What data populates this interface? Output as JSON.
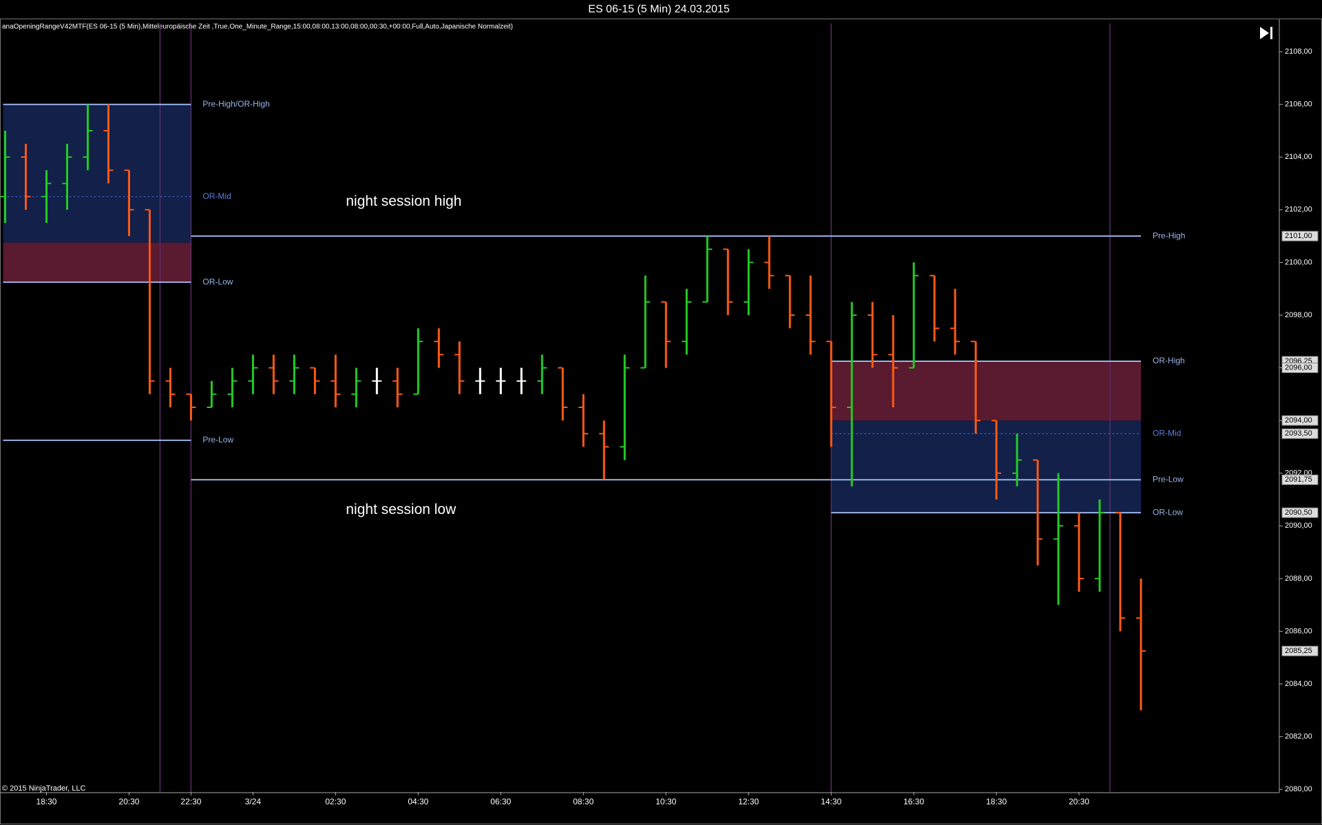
{
  "window_title": "ES 06-15 (5 Min)  24.03.2015",
  "indicator": "anaOpeningRangeV42MTF(ES 06-15 (5 Min),Mitteleuropäische Zeit ,True,One_Minute_Range,15:00,08:00,13:00,08:00,00:30,+00:00,Full,Auto,Japanische Normalzeit)",
  "copyright": "© 2015 NinjaTrader, LLC",
  "chart_data": {
    "type": "ohlc",
    "up_color": "#22cc22",
    "down_color": "#ff5a14",
    "flat_color": "#ffffff",
    "x": [
      -2,
      -1,
      0,
      1,
      2,
      3,
      4,
      5,
      6,
      7,
      8,
      9,
      10,
      11,
      12,
      13,
      14,
      15,
      16,
      17,
      18,
      19,
      20,
      21,
      22,
      23,
      24,
      25,
      26,
      27,
      28,
      29,
      30,
      31,
      32,
      33,
      34,
      35,
      36,
      37,
      38,
      39,
      40,
      41,
      42,
      43,
      44,
      45,
      46,
      47,
      48,
      49,
      50,
      51,
      52,
      53
    ],
    "open": [
      2102.5,
      2104,
      2102.5,
      2103,
      2104,
      2105,
      2103.5,
      2102,
      2095.5,
      2095,
      2094.5,
      2095,
      2095.5,
      2096,
      2095.5,
      2096,
      2095.5,
      2095,
      2095.5,
      2095.5,
      2095,
      2097,
      2096.5,
      2095.5,
      2095.5,
      2095.5,
      2095.5,
      2096,
      2094.5,
      2093.5,
      2093,
      2096,
      2098.5,
      2097,
      2098.5,
      2100.5,
      2098.5,
      2100,
      2099.5,
      2098,
      2097,
      2094.5,
      2098,
      2096.5,
      2096,
      2099.5,
      2097.5,
      2097,
      2094,
      2092,
      2092.5,
      2089.5,
      2090,
      2088,
      2090.5,
      2086.5
    ],
    "high": [
      2105,
      2104.5,
      2103.5,
      2104.5,
      2106,
      2106,
      2103.5,
      2102,
      2096,
      2095,
      2095.5,
      2096,
      2096.5,
      2096.5,
      2096.5,
      2096,
      2096.5,
      2096,
      2096,
      2096,
      2097.5,
      2097.5,
      2097,
      2096,
      2096,
      2096,
      2096.5,
      2096,
      2095,
      2094,
      2096.5,
      2099.5,
      2098.5,
      2099,
      2101,
      2100.5,
      2100.5,
      2101,
      2099.5,
      2099.5,
      2097,
      2098.5,
      2098.5,
      2098,
      2100,
      2099.5,
      2099,
      2097,
      2094,
      2093.5,
      2092.5,
      2092,
      2090.5,
      2091,
      2090.5,
      2088
    ],
    "low": [
      2101.5,
      2102,
      2101.5,
      2102,
      2103.5,
      2103,
      2101,
      2095,
      2094.5,
      2094,
      2094.5,
      2094.5,
      2095,
      2095,
      2095,
      2095,
      2094.5,
      2094.5,
      2095,
      2094.5,
      2095,
      2096,
      2095,
      2095,
      2095,
      2095,
      2095,
      2094,
      2093,
      2091.75,
      2092.5,
      2096,
      2096,
      2096.5,
      2098.5,
      2098,
      2098,
      2099,
      2097.5,
      2096.5,
      2093,
      2091.5,
      2096,
      2094.5,
      2096,
      2097,
      2096.5,
      2093.5,
      2091,
      2091.5,
      2088.5,
      2087,
      2087.5,
      2087.5,
      2086,
      2083
    ],
    "close": [
      2104,
      2102.5,
      2103,
      2104,
      2105,
      2103.5,
      2102,
      2095.5,
      2095,
      2094.5,
      2095,
      2095.5,
      2096,
      2095.5,
      2096,
      2095.5,
      2095,
      2095.5,
      2095.5,
      2095,
      2097,
      2096.5,
      2095.5,
      2095.5,
      2095.5,
      2095.5,
      2096,
      2094.5,
      2093.5,
      2093,
      2096,
      2098.5,
      2097,
      2098.5,
      2100.5,
      2098.5,
      2100,
      2099.5,
      2098,
      2097,
      2094.5,
      2098,
      2096.5,
      2096,
      2099.5,
      2097.5,
      2097,
      2094,
      2092,
      2092.5,
      2089.5,
      2090,
      2088,
      2090.5,
      2086.5,
      2085.25
    ],
    "xlim": [
      -2.25,
      59.7
    ],
    "xticks": [
      {
        "value": 0,
        "label": "18:30"
      },
      {
        "value": 4,
        "label": "20:30"
      },
      {
        "value": 7,
        "label": "22:30"
      },
      {
        "value": 10,
        "label": "3/24"
      },
      {
        "value": 14,
        "label": "02:30"
      },
      {
        "value": 18,
        "label": "04:30"
      },
      {
        "value": 22,
        "label": "06:30"
      },
      {
        "value": 26,
        "label": "08:30"
      },
      {
        "value": 30,
        "label": "10:30"
      },
      {
        "value": 34,
        "label": "12:30"
      },
      {
        "value": 38,
        "label": "14:30"
      },
      {
        "value": 42,
        "label": "16:30"
      },
      {
        "value": 46,
        "label": "18:30"
      },
      {
        "value": 50,
        "label": "20:30"
      }
    ],
    "ylim": [
      2079.9,
      2109.1
    ],
    "yticks": [
      {
        "value": 2080,
        "label": "2080,00"
      },
      {
        "value": 2082,
        "label": "2082,00"
      },
      {
        "value": 2084,
        "label": "2084,00"
      },
      {
        "value": 2086,
        "label": "2086,00"
      },
      {
        "value": 2088,
        "label": "2088,00"
      },
      {
        "value": 2090,
        "label": "2090,00"
      },
      {
        "value": 2092,
        "label": "2092,00"
      },
      {
        "value": 2094,
        "label": "2094,00"
      },
      {
        "value": 2096,
        "label": "2096,00"
      },
      {
        "value": 2098,
        "label": "2098,00"
      },
      {
        "value": 2100,
        "label": "2100,00"
      },
      {
        "value": 2102,
        "label": "2102,00"
      },
      {
        "value": 2104,
        "label": "2104,00"
      },
      {
        "value": 2106,
        "label": "2106,00"
      },
      {
        "value": 2108,
        "label": "2108,00"
      }
    ],
    "session_lines": [
      5.5,
      7,
      38,
      51.5
    ],
    "zones": [
      {
        "from": -2.1,
        "to": 7,
        "low": 2100.75,
        "high": 2106,
        "color": "#12204a"
      },
      {
        "from": -2.1,
        "to": 7,
        "low": 2099.25,
        "high": 2100.75,
        "color": "#5a1a30"
      },
      {
        "from": 38,
        "to": 53,
        "low": 2090.5,
        "high": 2094,
        "color": "#12204a"
      },
      {
        "from": 38,
        "to": 53,
        "low": 2094,
        "high": 2096.25,
        "color": "#5a1a30"
      }
    ],
    "levels": [
      {
        "name": "Pre-High/OR-High",
        "value": 2106,
        "from": -2.1,
        "to": 7,
        "dashed": false
      },
      {
        "name": "OR-Mid",
        "value": 2102.5,
        "from": -2.1,
        "to": 7,
        "dashed": true
      },
      {
        "name": "OR-Low",
        "value": 2099.25,
        "from": -2.1,
        "to": 7,
        "dashed": false
      },
      {
        "name": "Pre-Low",
        "value": 2093.25,
        "from": -2.1,
        "to": 7,
        "dashed": false
      },
      {
        "name": "Pre-High",
        "value": 2101,
        "from": 7,
        "to": 53,
        "dashed": false
      },
      {
        "name": "OR-High",
        "value": 2096.25,
        "from": 38,
        "to": 53,
        "dashed": false
      },
      {
        "name": "OR-Mid",
        "value": 2093.5,
        "from": 38,
        "to": 53,
        "dashed": true
      },
      {
        "name": "Pre-Low",
        "value": 2091.75,
        "from": 7,
        "to": 53,
        "dashed": false
      },
      {
        "name": "OR-Low",
        "value": 2090.5,
        "from": 38,
        "to": 53,
        "dashed": false
      }
    ],
    "annotations": [
      {
        "text": "night session high",
        "x": 14.5,
        "y": 2102.3
      },
      {
        "text": "night session low",
        "x": 14.5,
        "y": 2090.6
      }
    ],
    "price_markers": [
      {
        "value": 2101,
        "label": "2101,00"
      },
      {
        "value": 2096.25,
        "label": "2096,25"
      },
      {
        "value": 2096,
        "label": "2096,00"
      },
      {
        "value": 2094,
        "label": "2094,00"
      },
      {
        "value": 2093.5,
        "label": "2093,50"
      },
      {
        "value": 2091.75,
        "label": "2091,75"
      },
      {
        "value": 2090.5,
        "label": "2090,50"
      },
      {
        "value": 2085.25,
        "label": "2085,25"
      }
    ]
  }
}
